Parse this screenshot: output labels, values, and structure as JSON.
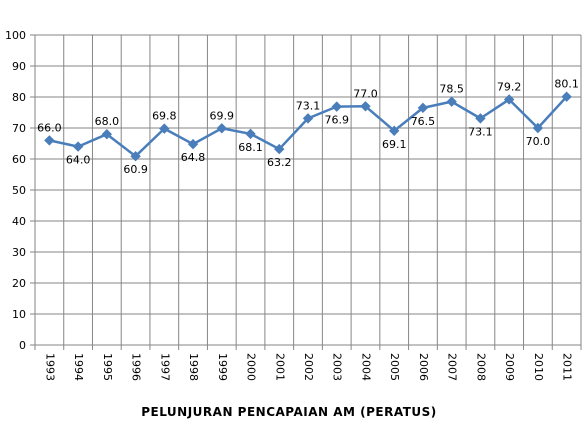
{
  "chart_data": {
    "type": "line",
    "title": "",
    "xlabel": "PELUNJURAN PENCAPAIAN AM (PERATUS)",
    "ylabel": "",
    "ylim": [
      0,
      100
    ],
    "y_ticks": [
      "0",
      "10",
      "20",
      "30",
      "40",
      "50",
      "60",
      "70",
      "80",
      "90",
      "100"
    ],
    "grid": true,
    "legend": "none",
    "x": [
      "1993",
      "1994",
      "1995",
      "1996",
      "1997",
      "1998",
      "1999",
      "2000",
      "2001",
      "2002",
      "2003",
      "2004",
      "2005",
      "2006",
      "2007",
      "2008",
      "2009",
      "2010",
      "2011"
    ],
    "series": [
      {
        "values": [
          66.0,
          64.0,
          68.0,
          60.9,
          69.8,
          64.8,
          69.9,
          68.1,
          63.2,
          73.1,
          76.9,
          77.0,
          69.1,
          76.5,
          78.5,
          73.1,
          79.2,
          70.0,
          80.1
        ],
        "labels": [
          "66.0",
          "64.0",
          "68.0",
          "60.9",
          "69.8",
          "64.8",
          "69.9",
          "68.1",
          "63.2",
          "73.1",
          "76.9",
          "77.0",
          "69.1",
          "76.5",
          "78.5",
          "73.1",
          "79.2",
          "70.0",
          "80.1"
        ],
        "label_pos": [
          "above",
          "below",
          "above",
          "below",
          "above",
          "below",
          "above",
          "below",
          "below",
          "above",
          "below",
          "above",
          "below",
          "below",
          "above",
          "below",
          "above",
          "below",
          "above"
        ],
        "color": "#4a7ebb"
      }
    ]
  }
}
